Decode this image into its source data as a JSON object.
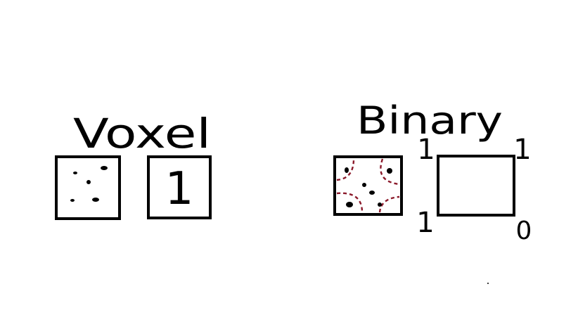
{
  "voxel_title": "Voxel",
  "voxel_value": "1",
  "binary_title": "Binary",
  "corners": {
    "top_left": "1",
    "top_right": "1",
    "bottom_left": "1",
    "bottom_right": "0"
  },
  "colors": {
    "ink": "#000000",
    "dashed_region": "#8b1a2b",
    "background": "#ffffff"
  }
}
